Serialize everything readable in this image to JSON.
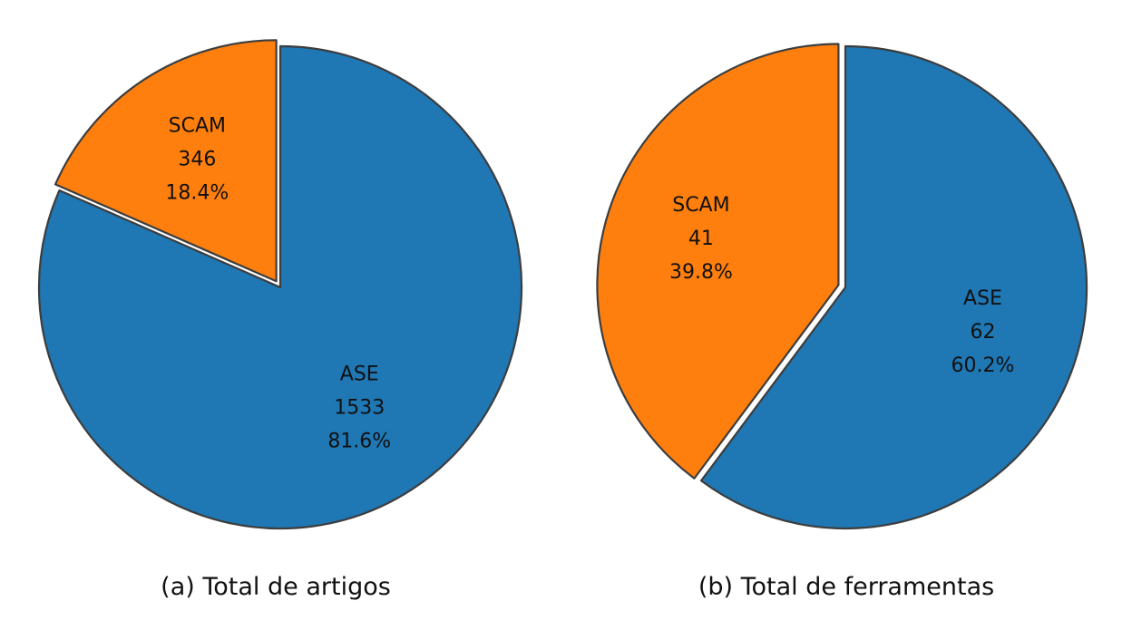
{
  "chart_data": [
    {
      "type": "pie",
      "caption": "(a) Total de artigos",
      "slices": [
        {
          "name": "ASE",
          "value": 1533,
          "percent_label": "81.6%",
          "color": "#1f77b4",
          "exploded": false
        },
        {
          "name": "SCAM",
          "value": 346,
          "percent_label": "18.4%",
          "color": "#ff7f0e",
          "exploded": true
        }
      ]
    },
    {
      "type": "pie",
      "caption": "(b) Total de ferramentas",
      "slices": [
        {
          "name": "ASE",
          "value": 62,
          "percent_label": "60.2%",
          "color": "#1f77b4",
          "exploded": false
        },
        {
          "name": "SCAM",
          "value": 41,
          "percent_label": "39.8%",
          "color": "#ff7f0e",
          "exploded": true
        }
      ]
    }
  ]
}
